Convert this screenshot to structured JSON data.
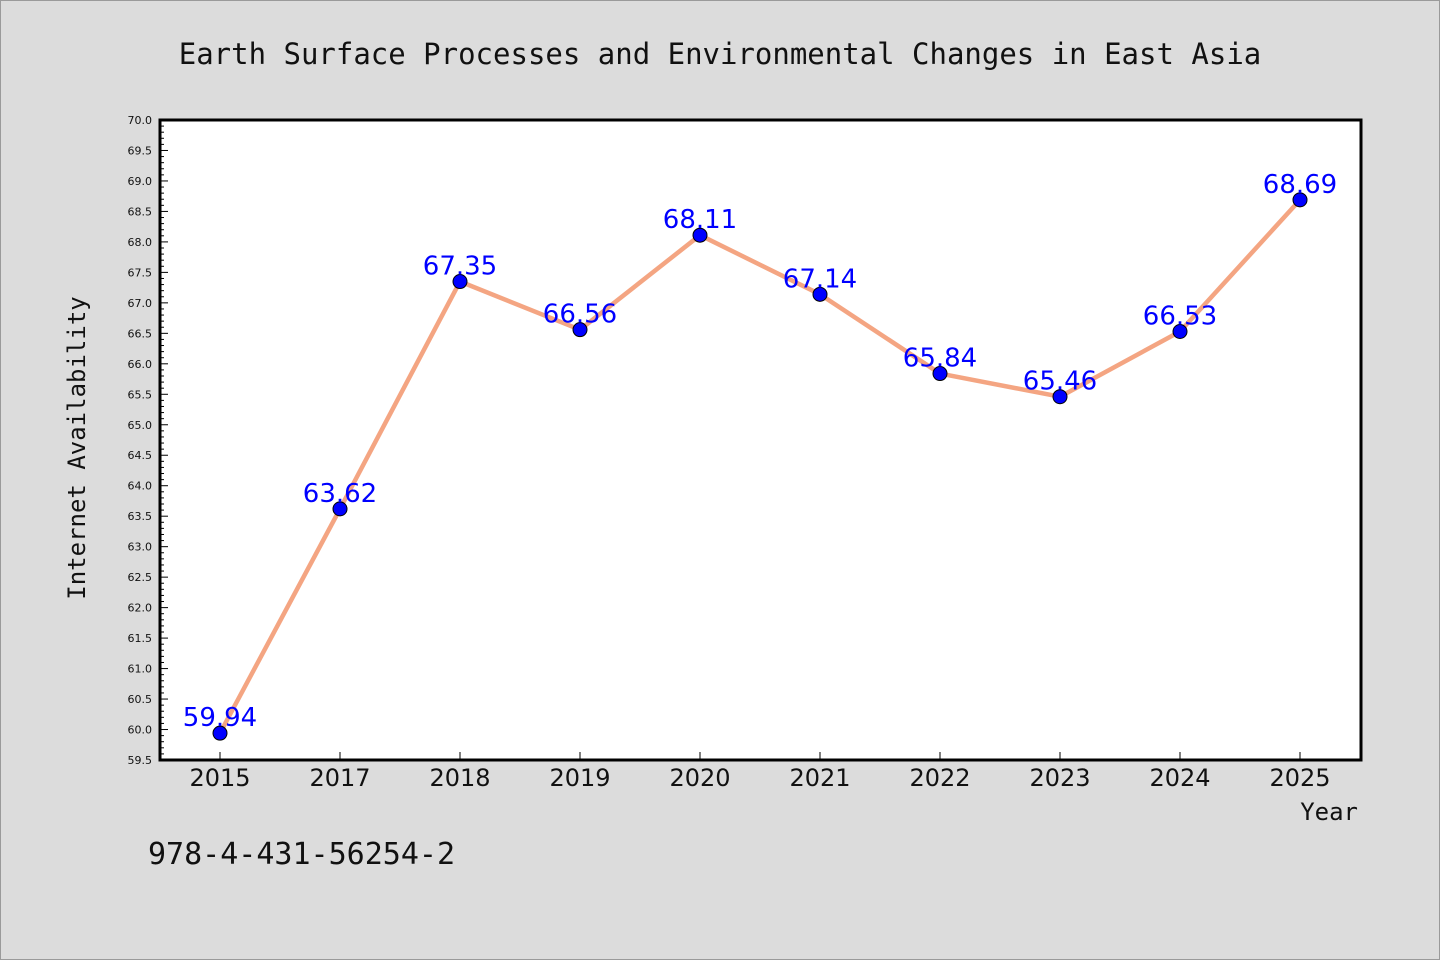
{
  "chart_data": {
    "type": "line",
    "title": "Earth Surface Processes and Environmental Changes in East Asia",
    "xlabel": "Year",
    "ylabel": "Internet Availability",
    "categories": [
      "2015",
      "2017",
      "2018",
      "2019",
      "2020",
      "2021",
      "2022",
      "2023",
      "2024",
      "2025"
    ],
    "series": [
      {
        "values": [
          59.94,
          63.62,
          67.35,
          66.56,
          68.11,
          67.14,
          65.84,
          65.46,
          66.53,
          68.69
        ],
        "data_labels": [
          "59.94",
          "63.62",
          "67.35",
          "66.56",
          "68.11",
          "67.14",
          "65.84",
          "65.46",
          "66.53",
          "68.69"
        ],
        "line_color": "#f4a582",
        "marker_color": "#0000ff",
        "label_color": "#0000ff"
      }
    ],
    "ylim": [
      59.5,
      70.0
    ],
    "ytick_step": 0.5,
    "grid": false,
    "legend": "none"
  },
  "footer": {
    "isbn": "978-4-431-56254-2"
  },
  "colors": {
    "background": "#dcdcdc",
    "plot_background": "#ffffff"
  }
}
